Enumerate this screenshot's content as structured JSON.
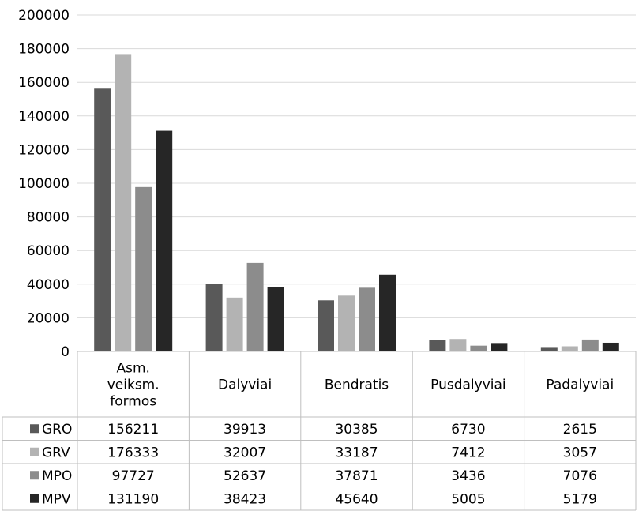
{
  "chart_data": {
    "type": "bar",
    "title": "",
    "xlabel": "",
    "ylabel": "",
    "ylim": [
      0,
      200000
    ],
    "yticks": [
      0,
      20000,
      40000,
      60000,
      80000,
      100000,
      120000,
      140000,
      160000,
      180000,
      200000
    ],
    "grid": true,
    "legend": "data-table-left",
    "categories": [
      [
        "Asm.",
        "veiksm.",
        "formos"
      ],
      [
        "Dalyviai"
      ],
      [
        "Bendratis"
      ],
      [
        "Pusdalyviai"
      ],
      [
        "Padalyviai"
      ]
    ],
    "series": [
      {
        "name": "GRO",
        "color": "#595959",
        "values": [
          156211,
          39913,
          30385,
          6730,
          2615
        ]
      },
      {
        "name": "GRV",
        "color": "#b3b3b3",
        "values": [
          176333,
          32007,
          33187,
          7412,
          3057
        ]
      },
      {
        "name": "MPO",
        "color": "#8c8c8c",
        "values": [
          97727,
          52637,
          37871,
          3436,
          7076
        ]
      },
      {
        "name": "MPV",
        "color": "#262626",
        "values": [
          131190,
          38423,
          45640,
          5005,
          5179
        ]
      }
    ]
  }
}
